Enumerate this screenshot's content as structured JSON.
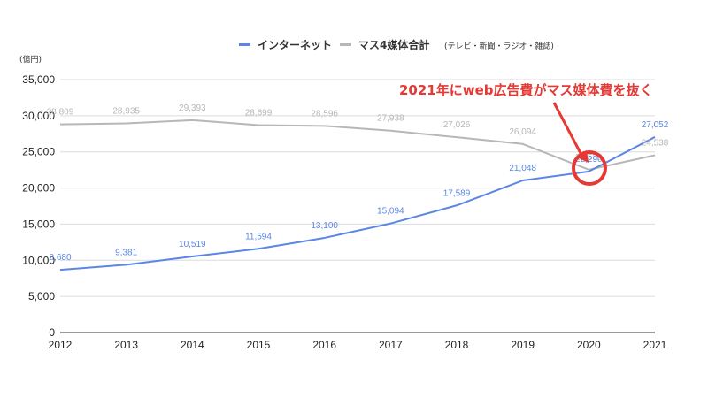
{
  "chart_data": {
    "type": "line",
    "unit_label": "(億円)",
    "x": [
      "2012",
      "2013",
      "2014",
      "2015",
      "2016",
      "2017",
      "2018",
      "2019",
      "2020",
      "2021"
    ],
    "ylim": [
      0,
      35000
    ],
    "yticks": [
      "0",
      "5,000",
      "10,000",
      "15,000",
      "20,000",
      "25,000",
      "30,000",
      "35,000"
    ],
    "ytick_values": [
      0,
      5000,
      10000,
      15000,
      20000,
      25000,
      30000,
      35000
    ],
    "grid": true,
    "legend_position": "top",
    "series": [
      {
        "name": "インターネット",
        "color": "#5b86e5",
        "values": [
          8680,
          9381,
          10519,
          11594,
          13100,
          15094,
          17589,
          21048,
          22290,
          27052
        ],
        "labels": [
          "8,680",
          "9,381",
          "10,519",
          "11,594",
          "13,100",
          "15,094",
          "17,589",
          "21,048",
          "22,290",
          "27,052"
        ]
      },
      {
        "name": "マス4媒体合計",
        "name_suffix": "(テレビ・新聞・ラジオ・雑誌)",
        "color": "#b7b7b7",
        "values": [
          28809,
          28935,
          29393,
          28699,
          28596,
          27938,
          27026,
          26094,
          22536,
          24538
        ],
        "labels": [
          "28,809",
          "28,935",
          "29,393",
          "28,699",
          "28,596",
          "27,938",
          "27,026",
          "26,094",
          "22,536",
          "24,538"
        ]
      }
    ],
    "annotation": {
      "text": "2021年にweb広告費がマス媒体費を抜く",
      "color": "#e53935"
    }
  }
}
